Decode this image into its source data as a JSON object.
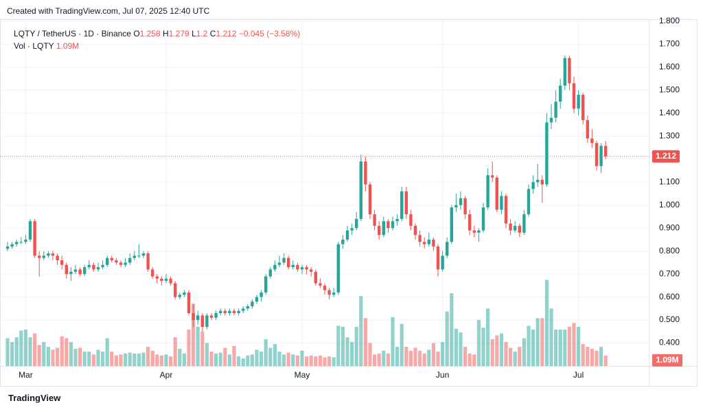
{
  "header": "Created with TradingView.com, Jul 07, 2025 12:40 UTC",
  "footer": "TradingView",
  "chart_data": {
    "type": "candlestick",
    "title": "LQTY / TetherUS · 1D · Binance",
    "ohlc_labels": [
      "O",
      "H",
      "L",
      "C"
    ],
    "change": "−0.045 (−3.58%)",
    "volume_title": "Vol · LQTY",
    "volume_label": "1.09M",
    "up_color": "#26a69a",
    "down_color": "#ef5350",
    "grid": true,
    "ylim": [
      0.3,
      1.8
    ],
    "yticks": [
      {
        "value": 0.4,
        "label": "0.400"
      },
      {
        "value": 0.5,
        "label": "0.500"
      },
      {
        "value": 0.6,
        "label": "0.600"
      },
      {
        "value": 0.7,
        "label": "0.700"
      },
      {
        "value": 0.8,
        "label": "0.800"
      },
      {
        "value": 0.9,
        "label": "0.900"
      },
      {
        "value": 1.0,
        "label": "1.000"
      },
      {
        "value": 1.1,
        "label": "1.100"
      },
      {
        "value": 1.2,
        "label": "1.200"
      },
      {
        "value": 1.3,
        "label": "1.300"
      },
      {
        "value": 1.4,
        "label": "1.400"
      },
      {
        "value": 1.5,
        "label": "1.500"
      },
      {
        "value": 1.6,
        "label": "1.600"
      },
      {
        "value": 1.7,
        "label": "1.700"
      },
      {
        "value": 1.8,
        "label": "1.800"
      }
    ],
    "xticks": [
      {
        "value": 4,
        "label": "Mar"
      },
      {
        "value": 35,
        "label": "Apr"
      },
      {
        "value": 65,
        "label": "May"
      },
      {
        "value": 96,
        "label": "Jun"
      },
      {
        "value": 126,
        "label": "Jul"
      }
    ],
    "volume_lim": [
      0,
      36
    ],
    "ohlc": [
      [
        0.81,
        0.84,
        0.8,
        0.82
      ],
      [
        0.82,
        0.84,
        0.81,
        0.83
      ],
      [
        0.83,
        0.85,
        0.82,
        0.84
      ],
      [
        0.84,
        0.86,
        0.83,
        0.84
      ],
      [
        0.84,
        0.87,
        0.83,
        0.85
      ],
      [
        0.85,
        0.94,
        0.84,
        0.93
      ],
      [
        0.93,
        0.94,
        0.77,
        0.78
      ],
      [
        0.78,
        0.8,
        0.69,
        0.77
      ],
      [
        0.77,
        0.8,
        0.76,
        0.78
      ],
      [
        0.78,
        0.8,
        0.77,
        0.79
      ],
      [
        0.79,
        0.8,
        0.76,
        0.78
      ],
      [
        0.78,
        0.79,
        0.74,
        0.76
      ],
      [
        0.76,
        0.78,
        0.72,
        0.74
      ],
      [
        0.74,
        0.75,
        0.68,
        0.7
      ],
      [
        0.7,
        0.73,
        0.67,
        0.71
      ],
      [
        0.71,
        0.74,
        0.7,
        0.72
      ],
      [
        0.72,
        0.73,
        0.69,
        0.7
      ],
      [
        0.7,
        0.74,
        0.69,
        0.73
      ],
      [
        0.73,
        0.76,
        0.72,
        0.74
      ],
      [
        0.74,
        0.75,
        0.71,
        0.72
      ],
      [
        0.72,
        0.75,
        0.71,
        0.73
      ],
      [
        0.73,
        0.76,
        0.72,
        0.74
      ],
      [
        0.74,
        0.78,
        0.73,
        0.77
      ],
      [
        0.77,
        0.78,
        0.75,
        0.76
      ],
      [
        0.76,
        0.77,
        0.74,
        0.75
      ],
      [
        0.75,
        0.76,
        0.73,
        0.74
      ],
      [
        0.74,
        0.77,
        0.73,
        0.75
      ],
      [
        0.75,
        0.79,
        0.74,
        0.77
      ],
      [
        0.77,
        0.8,
        0.76,
        0.78
      ],
      [
        0.78,
        0.83,
        0.77,
        0.78
      ],
      [
        0.78,
        0.8,
        0.77,
        0.79
      ],
      [
        0.79,
        0.8,
        0.71,
        0.72
      ],
      [
        0.72,
        0.73,
        0.68,
        0.69
      ],
      [
        0.69,
        0.7,
        0.66,
        0.68
      ],
      [
        0.68,
        0.69,
        0.65,
        0.67
      ],
      [
        0.67,
        0.7,
        0.66,
        0.68
      ],
      [
        0.68,
        0.69,
        0.65,
        0.66
      ],
      [
        0.66,
        0.67,
        0.59,
        0.6
      ],
      [
        0.6,
        0.62,
        0.59,
        0.61
      ],
      [
        0.61,
        0.63,
        0.6,
        0.62
      ],
      [
        0.62,
        0.63,
        0.52,
        0.53
      ],
      [
        0.53,
        0.57,
        0.47,
        0.5
      ],
      [
        0.5,
        0.54,
        0.48,
        0.52
      ],
      [
        0.52,
        0.53,
        0.45,
        0.47
      ],
      [
        0.47,
        0.53,
        0.46,
        0.52
      ],
      [
        0.52,
        0.53,
        0.5,
        0.51
      ],
      [
        0.51,
        0.54,
        0.5,
        0.53
      ],
      [
        0.53,
        0.55,
        0.52,
        0.54
      ],
      [
        0.54,
        0.55,
        0.52,
        0.53
      ],
      [
        0.53,
        0.55,
        0.52,
        0.54
      ],
      [
        0.54,
        0.55,
        0.52,
        0.53
      ],
      [
        0.53,
        0.55,
        0.52,
        0.54
      ],
      [
        0.54,
        0.56,
        0.53,
        0.55
      ],
      [
        0.55,
        0.57,
        0.54,
        0.56
      ],
      [
        0.56,
        0.59,
        0.55,
        0.58
      ],
      [
        0.58,
        0.61,
        0.57,
        0.6
      ],
      [
        0.6,
        0.63,
        0.58,
        0.62
      ],
      [
        0.62,
        0.7,
        0.61,
        0.69
      ],
      [
        0.69,
        0.73,
        0.68,
        0.72
      ],
      [
        0.72,
        0.76,
        0.71,
        0.74
      ],
      [
        0.74,
        0.78,
        0.73,
        0.75
      ],
      [
        0.75,
        0.79,
        0.74,
        0.77
      ],
      [
        0.77,
        0.78,
        0.72,
        0.73
      ],
      [
        0.73,
        0.76,
        0.72,
        0.74
      ],
      [
        0.74,
        0.75,
        0.71,
        0.72
      ],
      [
        0.72,
        0.74,
        0.7,
        0.73
      ],
      [
        0.73,
        0.74,
        0.7,
        0.72
      ],
      [
        0.72,
        0.73,
        0.69,
        0.71
      ],
      [
        0.71,
        0.72,
        0.65,
        0.66
      ],
      [
        0.66,
        0.68,
        0.64,
        0.65
      ],
      [
        0.65,
        0.66,
        0.61,
        0.63
      ],
      [
        0.63,
        0.64,
        0.59,
        0.61
      ],
      [
        0.61,
        0.64,
        0.6,
        0.62
      ],
      [
        0.62,
        0.84,
        0.61,
        0.83
      ],
      [
        0.83,
        0.87,
        0.81,
        0.85
      ],
      [
        0.85,
        0.91,
        0.84,
        0.89
      ],
      [
        0.89,
        0.92,
        0.87,
        0.9
      ],
      [
        0.9,
        0.97,
        0.89,
        0.94
      ],
      [
        0.94,
        1.22,
        0.93,
        1.19
      ],
      [
        1.19,
        1.21,
        1.06,
        1.09
      ],
      [
        1.09,
        1.1,
        0.94,
        0.96
      ],
      [
        0.96,
        0.98,
        0.89,
        0.91
      ],
      [
        0.91,
        0.93,
        0.85,
        0.87
      ],
      [
        0.87,
        0.95,
        0.86,
        0.93
      ],
      [
        0.93,
        0.94,
        0.88,
        0.9
      ],
      [
        0.9,
        0.95,
        0.89,
        0.93
      ],
      [
        0.93,
        0.96,
        0.91,
        0.94
      ],
      [
        0.94,
        1.08,
        0.93,
        1.06
      ],
      [
        1.06,
        1.08,
        0.94,
        0.96
      ],
      [
        0.96,
        0.98,
        0.89,
        0.91
      ],
      [
        0.91,
        0.92,
        0.85,
        0.87
      ],
      [
        0.87,
        0.89,
        0.82,
        0.84
      ],
      [
        0.84,
        0.86,
        0.81,
        0.83
      ],
      [
        0.83,
        0.88,
        0.82,
        0.85
      ],
      [
        0.85,
        0.86,
        0.8,
        0.82
      ],
      [
        0.82,
        0.83,
        0.69,
        0.72
      ],
      [
        0.72,
        0.8,
        0.71,
        0.78
      ],
      [
        0.78,
        0.86,
        0.77,
        0.84
      ],
      [
        0.84,
        1.0,
        0.83,
        0.99
      ],
      [
        0.99,
        1.05,
        0.97,
        1.0
      ],
      [
        1.0,
        1.06,
        0.98,
        1.03
      ],
      [
        1.03,
        1.04,
        0.94,
        0.96
      ],
      [
        0.96,
        0.98,
        0.87,
        0.89
      ],
      [
        0.89,
        0.91,
        0.86,
        0.88
      ],
      [
        0.88,
        0.9,
        0.84,
        0.89
      ],
      [
        0.89,
        1.01,
        0.88,
        0.99
      ],
      [
        0.99,
        1.16,
        0.98,
        1.13
      ],
      [
        1.13,
        1.19,
        1.1,
        1.12
      ],
      [
        1.12,
        1.13,
        0.97,
        0.98
      ],
      [
        0.98,
        1.06,
        0.96,
        1.04
      ],
      [
        1.04,
        1.05,
        0.9,
        0.92
      ],
      [
        0.92,
        0.94,
        0.87,
        0.89
      ],
      [
        0.89,
        0.93,
        0.88,
        0.91
      ],
      [
        0.91,
        0.92,
        0.86,
        0.88
      ],
      [
        0.88,
        0.98,
        0.87,
        0.96
      ],
      [
        0.96,
        1.09,
        0.95,
        1.07
      ],
      [
        1.07,
        1.13,
        1.05,
        1.1
      ],
      [
        1.1,
        1.18,
        1.08,
        1.11
      ],
      [
        1.11,
        1.13,
        1.01,
        1.09
      ],
      [
        1.09,
        1.4,
        1.08,
        1.36
      ],
      [
        1.36,
        1.44,
        1.33,
        1.38
      ],
      [
        1.38,
        1.5,
        1.36,
        1.45
      ],
      [
        1.45,
        1.55,
        1.42,
        1.52
      ],
      [
        1.52,
        1.65,
        1.5,
        1.64
      ],
      [
        1.64,
        1.65,
        1.5,
        1.53
      ],
      [
        1.53,
        1.56,
        1.4,
        1.42
      ],
      [
        1.42,
        1.5,
        1.39,
        1.48
      ],
      [
        1.48,
        1.49,
        1.35,
        1.37
      ],
      [
        1.37,
        1.39,
        1.27,
        1.29
      ],
      [
        1.29,
        1.33,
        1.25,
        1.27
      ],
      [
        1.27,
        1.28,
        1.15,
        1.17
      ],
      [
        1.17,
        1.27,
        1.14,
        1.258
      ],
      [
        1.258,
        1.279,
        1.2,
        1.212
      ]
    ],
    "volume": [
      2.9,
      2.5,
      3.0,
      3.7,
      3.8,
      3.0,
      3.4,
      2.2,
      2.5,
      2.0,
      1.7,
      1.9,
      3.1,
      2.9,
      2.5,
      1.8,
      1.9,
      1.5,
      1.5,
      1.2,
      1.7,
      1.5,
      2.9,
      1.5,
      1.1,
      1.2,
      1.3,
      1.4,
      1.3,
      1.3,
      1.4,
      2.0,
      1.6,
      1.2,
      1.1,
      1.2,
      1.0,
      3.0,
      1.8,
      1.3,
      3.8,
      6.5,
      4.1,
      3.6,
      2.4,
      1.5,
      1.3,
      1.4,
      1.9,
      1.2,
      2.1,
      1.0,
      0.8,
      1.1,
      1.2,
      1.7,
      1.5,
      2.8,
      1.9,
      2.3,
      1.5,
      1.2,
      1.4,
      1.2,
      1.1,
      1.6,
      1.0,
      1.1,
      1.0,
      1.1,
      0.9,
      1.0,
      0.9,
      4.2,
      4.1,
      3.0,
      2.5,
      4.1,
      7.3,
      5.0,
      2.4,
      1.2,
      1.3,
      1.6,
      1.3,
      5.1,
      2.0,
      4.4,
      2.0,
      1.6,
      1.9,
      1.6,
      1.3,
      1.7,
      2.4,
      1.5,
      2.5,
      5.7,
      7.6,
      3.9,
      3.5,
      2.0,
      1.3,
      1.2,
      4.8,
      4.0,
      6.0,
      2.8,
      3.2,
      3.4,
      2.5,
      1.9,
      1.5,
      2.0,
      2.9,
      4.2,
      3.8,
      5.0,
      5.0,
      9.0,
      6.0,
      3.8,
      3.8,
      3.8,
      4.1,
      4.5,
      4.1,
      2.3,
      2.0,
      1.8,
      1.6,
      2.0,
      1.09
    ]
  }
}
